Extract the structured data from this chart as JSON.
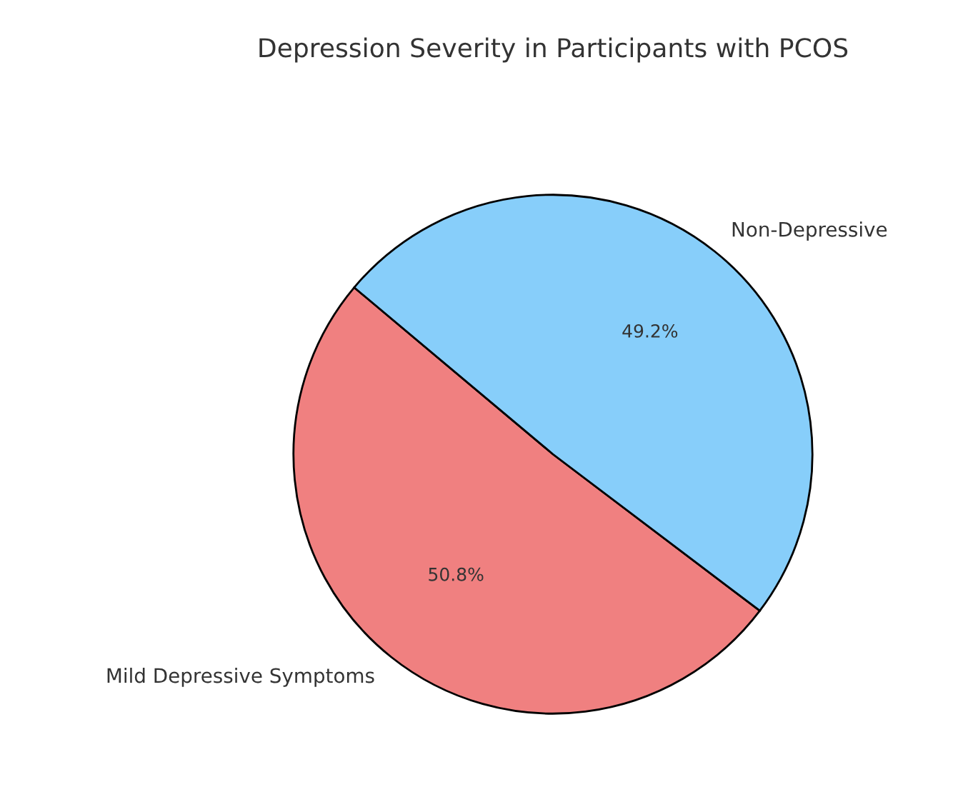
{
  "chart_data": {
    "type": "pie",
    "title": "Depression Severity in Participants with PCOS",
    "categories": [
      "Mild Depressive Symptoms",
      "Non-Depressive"
    ],
    "values": [
      50.8,
      49.2
    ],
    "colors": [
      "#f08080",
      "#87cefa"
    ],
    "value_labels": [
      "50.8%",
      "49.2%"
    ]
  }
}
